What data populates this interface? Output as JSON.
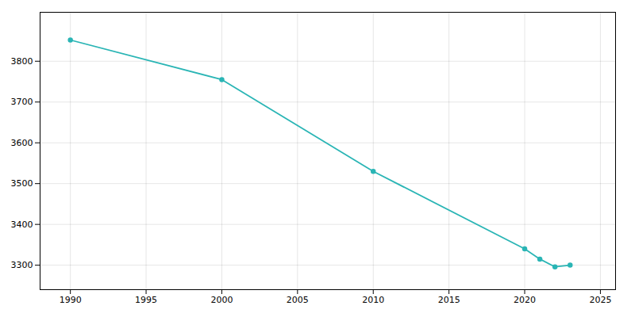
{
  "chart_data": {
    "type": "line",
    "x": [
      1990,
      2000,
      2010,
      2020,
      2021,
      2022,
      2023
    ],
    "values": [
      3852,
      3755,
      3530,
      3340,
      3315,
      3296,
      3300
    ],
    "color": "#2ab5b5",
    "marker": "circle",
    "xlim": [
      1988,
      2026
    ],
    "ylim": [
      3240,
      3920
    ],
    "xticks": [
      1990,
      1995,
      2000,
      2005,
      2010,
      2015,
      2020,
      2025
    ],
    "yticks": [
      3300,
      3400,
      3500,
      3600,
      3700,
      3800
    ],
    "grid": true
  }
}
